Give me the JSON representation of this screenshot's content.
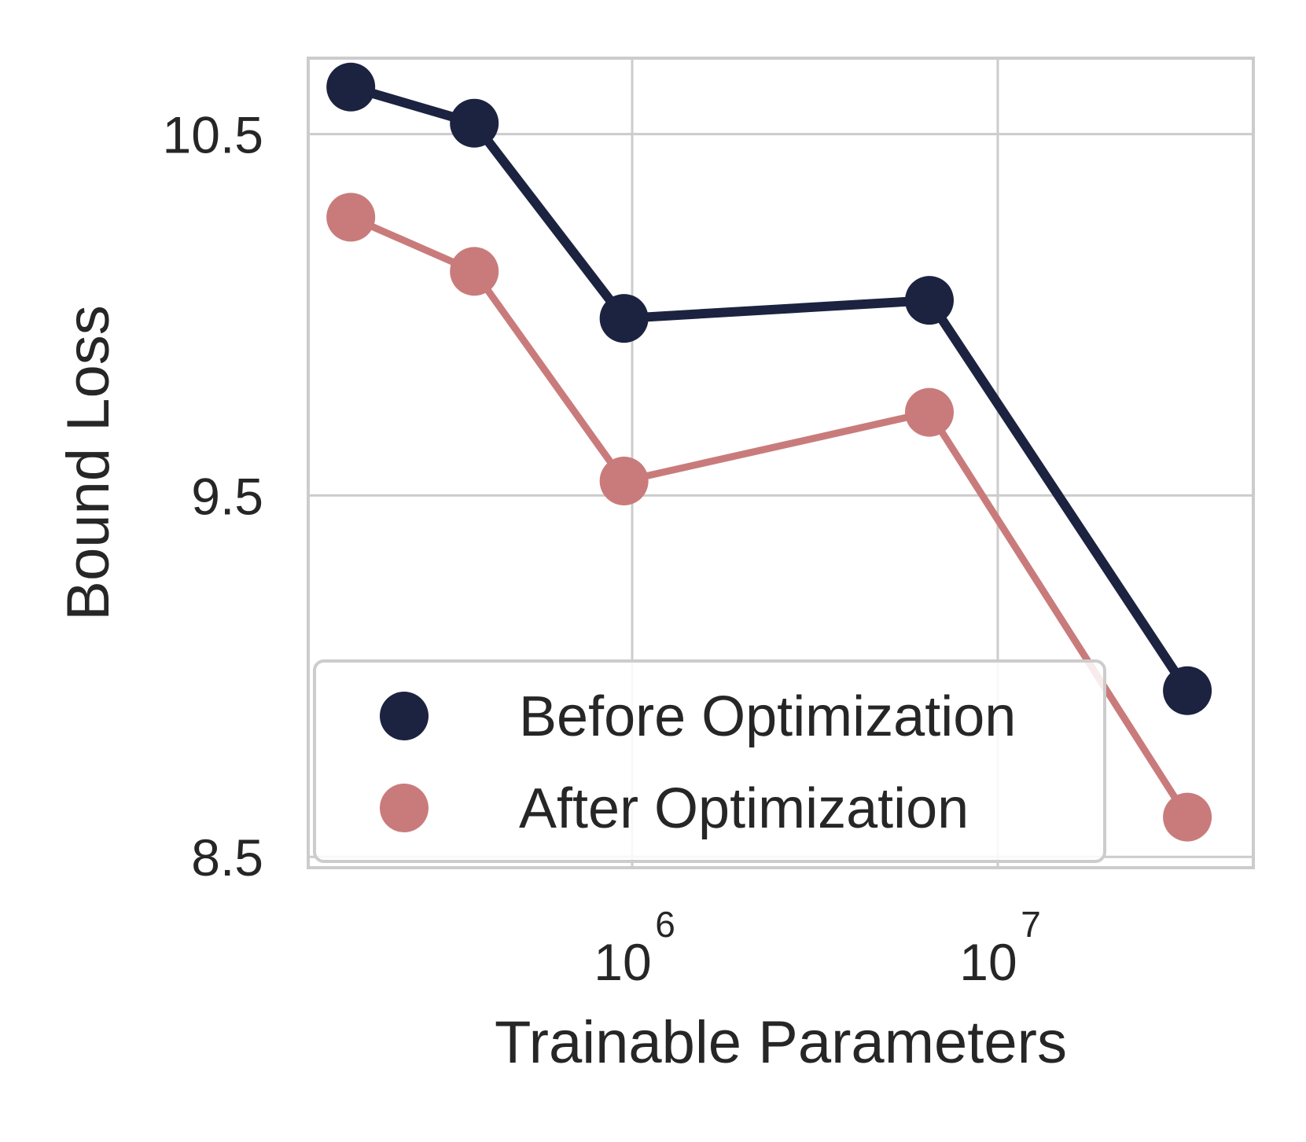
{
  "chart_data": {
    "type": "line",
    "xlabel": "Trainable Parameters",
    "ylabel": "Bound Loss",
    "x_scale": "log",
    "xlim": [
      130000,
      50000000
    ],
    "ylim": [
      8.47,
      10.71
    ],
    "x_ticks": [
      {
        "value": 1000000,
        "base": "10",
        "exponent": "6"
      },
      {
        "value": 10000000,
        "base": "10",
        "exponent": "7"
      }
    ],
    "y_ticks": [
      {
        "value": 8.5,
        "label": "8.5"
      },
      {
        "value": 9.5,
        "label": "9.5"
      },
      {
        "value": 10.5,
        "label": "10.5"
      }
    ],
    "grid": true,
    "legend_position": "lower-left",
    "series": [
      {
        "name": "Before Optimization",
        "color": "#1c2340",
        "x": [
          170000,
          370000,
          950000,
          6500000,
          33000000
        ],
        "y": [
          10.63,
          10.53,
          9.99,
          10.04,
          8.96
        ]
      },
      {
        "name": "After Optimization",
        "color": "#c97b7b",
        "x": [
          170000,
          370000,
          950000,
          6500000,
          33000000
        ],
        "y": [
          10.27,
          10.12,
          9.54,
          9.73,
          8.61
        ]
      }
    ]
  }
}
